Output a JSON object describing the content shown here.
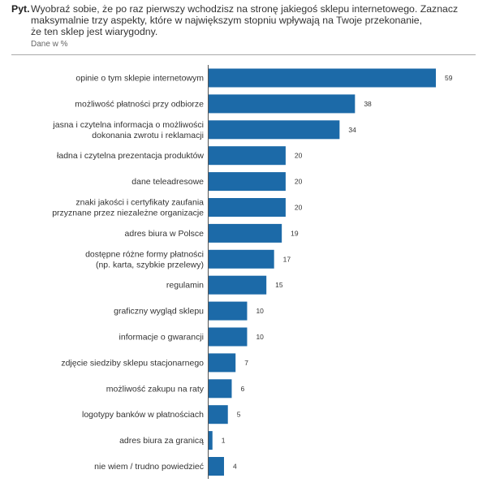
{
  "header": {
    "lead": "Pyt.",
    "question_lines": [
      "Wyobraź sobie, że po raz pierwszy wchodzisz na stronę jakiegoś sklepu internetowego. Zaznacz",
      "maksymalnie trzy aspekty, które w największym stopniu wpływają na Twoje przekonanie,",
      "że ten sklep jest wiarygodny."
    ],
    "note": "Dane w %"
  },
  "chart_data": {
    "type": "bar",
    "orientation": "horizontal",
    "title": "Wyobraź sobie, że po raz pierwszy wchodzisz na stronę jakiegoś sklepu internetowego. Zaznacz maksymalnie trzy aspekty, które w największym stopniu wpływają na Twoje przekonanie, że ten sklep jest wiarygodny.",
    "unit_note": "Dane w %",
    "xlabel": "",
    "ylabel": "",
    "xlim": [
      0,
      59
    ],
    "grid": false,
    "bar_color": "#1c6aa8",
    "categories": [
      [
        "opinie o tym sklepie internetowym"
      ],
      [
        "możliwość płatności przy odbiorze"
      ],
      [
        "jasna i czytelna informacja o możliwości",
        "dokonania zwrotu i reklamacji"
      ],
      [
        "ładna i czytelna prezentacja produktów"
      ],
      [
        "dane teleadresowe"
      ],
      [
        "znaki jakości i certyfikaty zaufania",
        "przyznane przez niezależne organizacje"
      ],
      [
        "adres biura w Polsce"
      ],
      [
        "dostępne różne formy płatności",
        "(np. karta, szybkie przelewy)"
      ],
      [
        "regulamin"
      ],
      [
        "graficzny wygląd sklepu"
      ],
      [
        "informacje o gwarancji"
      ],
      [
        "zdjęcie siedziby sklepu stacjonarnego"
      ],
      [
        "możliwość zakupu na raty"
      ],
      [
        "logotypy banków w płatnościach"
      ],
      [
        "adres biura za granicą"
      ],
      [
        "nie wiem / trudno powiedzieć"
      ]
    ],
    "values": [
      59,
      38,
      34,
      20,
      20,
      20,
      19,
      17,
      15,
      10,
      10,
      7,
      6,
      5,
      1,
      4
    ]
  }
}
